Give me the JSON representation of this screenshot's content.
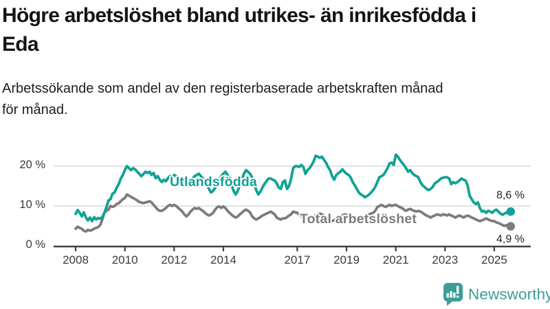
{
  "header": {
    "title_lines": [
      "Högre arbetslöshet bland utrikes- än inrikesfödda i",
      "Eda"
    ],
    "subtitle_lines": [
      "Arbetssökande som andel av den registerbaserade arbetskraften månad",
      "för månad."
    ]
  },
  "chart_data": {
    "type": "line",
    "unit": "%",
    "x_start_year": 2008,
    "x_months_span": 213,
    "x_end": "2025-09",
    "x_ticks": [
      2008,
      2010,
      2012,
      2014,
      2017,
      2019,
      2021,
      2023,
      2025
    ],
    "y_ticks": [
      {
        "value": 0,
        "label": "0 %"
      },
      {
        "value": 10,
        "label": "10 %"
      },
      {
        "value": 20,
        "label": "20 %"
      }
    ],
    "ylim": [
      0,
      24
    ],
    "grid": "horizontal",
    "legend_position": "inline-labels",
    "colors": {
      "grid": "#d9d9d9",
      "axis": "#404040"
    },
    "series": [
      {
        "name": "Utlandsfödda",
        "color": "#10a296",
        "end_label": "8,6 %",
        "end_value": 8.6,
        "values": [
          8.0,
          9.0,
          8.3,
          7.4,
          8.4,
          7.1,
          6.4,
          7.1,
          6.2,
          7.2,
          6.6,
          7.0,
          6.8,
          7.2,
          8.3,
          9.7,
          11.4,
          11.7,
          13.1,
          13.4,
          14.6,
          15.5,
          16.9,
          17.8,
          19.0,
          20.0,
          19.5,
          19.0,
          19.5,
          19.2,
          18.6,
          18.1,
          17.5,
          18.0,
          18.6,
          18.3,
          18.6,
          17.8,
          18.3,
          17.0,
          17.5,
          16.6,
          16.0,
          16.6,
          16.2,
          17.0,
          17.5,
          17.2,
          17.8,
          17.5,
          17.0,
          16.6,
          16.2,
          15.7,
          15.2,
          15.7,
          16.2,
          16.9,
          17.5,
          17.8,
          18.1,
          17.5,
          16.9,
          16.0,
          15.2,
          14.3,
          13.4,
          13.8,
          14.6,
          15.5,
          16.6,
          17.5,
          18.1,
          18.6,
          17.8,
          16.6,
          15.2,
          13.8,
          12.9,
          13.8,
          15.2,
          16.6,
          18.1,
          19.0,
          18.6,
          18.1,
          17.2,
          15.7,
          14.0,
          12.9,
          13.6,
          14.6,
          15.5,
          16.2,
          16.9,
          16.9,
          16.6,
          16.4,
          15.7,
          14.6,
          14.3,
          16.0,
          16.4,
          14.3,
          15.0,
          16.9,
          19.5,
          20.0,
          20.0,
          19.8,
          20.3,
          19.8,
          18.1,
          19.0,
          19.5,
          20.3,
          21.2,
          22.6,
          22.4,
          22.1,
          22.4,
          21.6,
          20.9,
          19.8,
          19.0,
          17.5,
          16.6,
          17.8,
          18.2,
          18.6,
          19.2,
          18.6,
          18.1,
          17.8,
          17.2,
          16.0,
          15.2,
          14.3,
          13.4,
          12.9,
          12.6,
          12.2,
          12.5,
          12.9,
          13.4,
          14.0,
          14.8,
          16.0,
          17.2,
          17.5,
          17.8,
          18.6,
          19.5,
          20.7,
          20.9,
          20.3,
          22.9,
          22.4,
          21.6,
          20.9,
          20.3,
          19.5,
          18.6,
          19.0,
          18.3,
          17.8,
          17.5,
          17.2,
          16.0,
          15.2,
          14.8,
          14.3,
          14.0,
          14.3,
          14.8,
          15.7,
          16.0,
          16.4,
          16.9,
          17.1,
          17.2,
          17.2,
          16.9,
          15.5,
          16.0,
          15.7,
          16.0,
          16.4,
          16.9,
          16.6,
          16.4,
          15.2,
          12.6,
          11.7,
          10.9,
          10.5,
          10.9,
          9.5,
          8.6,
          8.8,
          8.3,
          8.8,
          8.6,
          8.3,
          8.8,
          9.1,
          8.6,
          8.1,
          7.8,
          8.1,
          8.4,
          8.1,
          8.6
        ]
      },
      {
        "name": "Total arbetslöshet",
        "color": "#7c7c7c",
        "end_label": "4,9 %",
        "end_value": 4.9,
        "values": [
          4.3,
          4.8,
          4.5,
          4.3,
          3.8,
          3.6,
          4.0,
          3.8,
          4.0,
          4.3,
          4.5,
          4.7,
          5.2,
          6.6,
          8.3,
          8.8,
          9.1,
          10.0,
          9.8,
          10.0,
          10.5,
          10.7,
          11.2,
          11.7,
          12.0,
          12.9,
          12.6,
          12.3,
          12.0,
          11.7,
          11.4,
          11.0,
          10.9,
          10.7,
          10.9,
          11.0,
          11.2,
          10.9,
          10.3,
          9.7,
          9.1,
          8.8,
          8.8,
          9.1,
          9.5,
          10.0,
          10.3,
          10.0,
          10.3,
          10.0,
          9.5,
          9.1,
          8.6,
          7.9,
          7.4,
          7.9,
          8.6,
          9.1,
          9.5,
          9.3,
          9.5,
          9.1,
          8.8,
          8.3,
          7.9,
          7.6,
          7.9,
          8.3,
          9.1,
          9.7,
          9.9,
          9.5,
          9.9,
          9.5,
          8.8,
          8.3,
          7.8,
          7.4,
          7.1,
          7.4,
          7.9,
          8.3,
          8.8,
          9.1,
          8.8,
          8.4,
          7.4,
          6.9,
          6.6,
          6.9,
          7.2,
          7.6,
          7.8,
          8.1,
          8.3,
          8.6,
          8.3,
          7.9,
          7.1,
          6.8,
          6.6,
          6.9,
          6.9,
          7.2,
          7.6,
          7.9,
          8.6,
          8.4,
          8.3,
          7.8,
          7.4,
          7.1,
          6.9,
          6.6,
          6.9,
          7.1,
          7.4,
          7.6,
          7.9,
          8.1,
          7.9,
          7.6,
          7.1,
          6.8,
          6.4,
          6.2,
          6.4,
          6.8,
          7.1,
          7.4,
          7.6,
          7.9,
          7.8,
          7.4,
          7.1,
          6.9,
          6.6,
          6.4,
          6.6,
          6.9,
          7.2,
          7.4,
          7.6,
          7.9,
          8.1,
          8.3,
          8.8,
          9.7,
          10.0,
          10.3,
          10.0,
          9.8,
          10.0,
          10.3,
          10.0,
          10.2,
          10.3,
          10.0,
          9.7,
          9.5,
          9.1,
          8.8,
          9.1,
          9.3,
          9.0,
          8.8,
          8.6,
          8.8,
          8.6,
          8.3,
          7.9,
          7.6,
          7.4,
          7.1,
          7.4,
          7.6,
          7.9,
          7.8,
          7.6,
          7.9,
          7.8,
          7.6,
          7.9,
          7.6,
          7.4,
          7.1,
          7.4,
          7.6,
          7.4,
          7.1,
          7.4,
          7.6,
          7.4,
          7.1,
          6.9,
          6.6,
          6.4,
          6.2,
          6.4,
          6.6,
          6.9,
          6.6,
          6.4,
          6.2,
          6.2,
          5.9,
          5.7,
          5.5,
          5.2,
          5.0,
          5.2,
          5.0,
          4.9
        ]
      }
    ]
  },
  "footer": {
    "brand": "Newsworthy",
    "brand_color": "#3d9c98",
    "logo_icon": "bar-chart-speech-bubble"
  }
}
